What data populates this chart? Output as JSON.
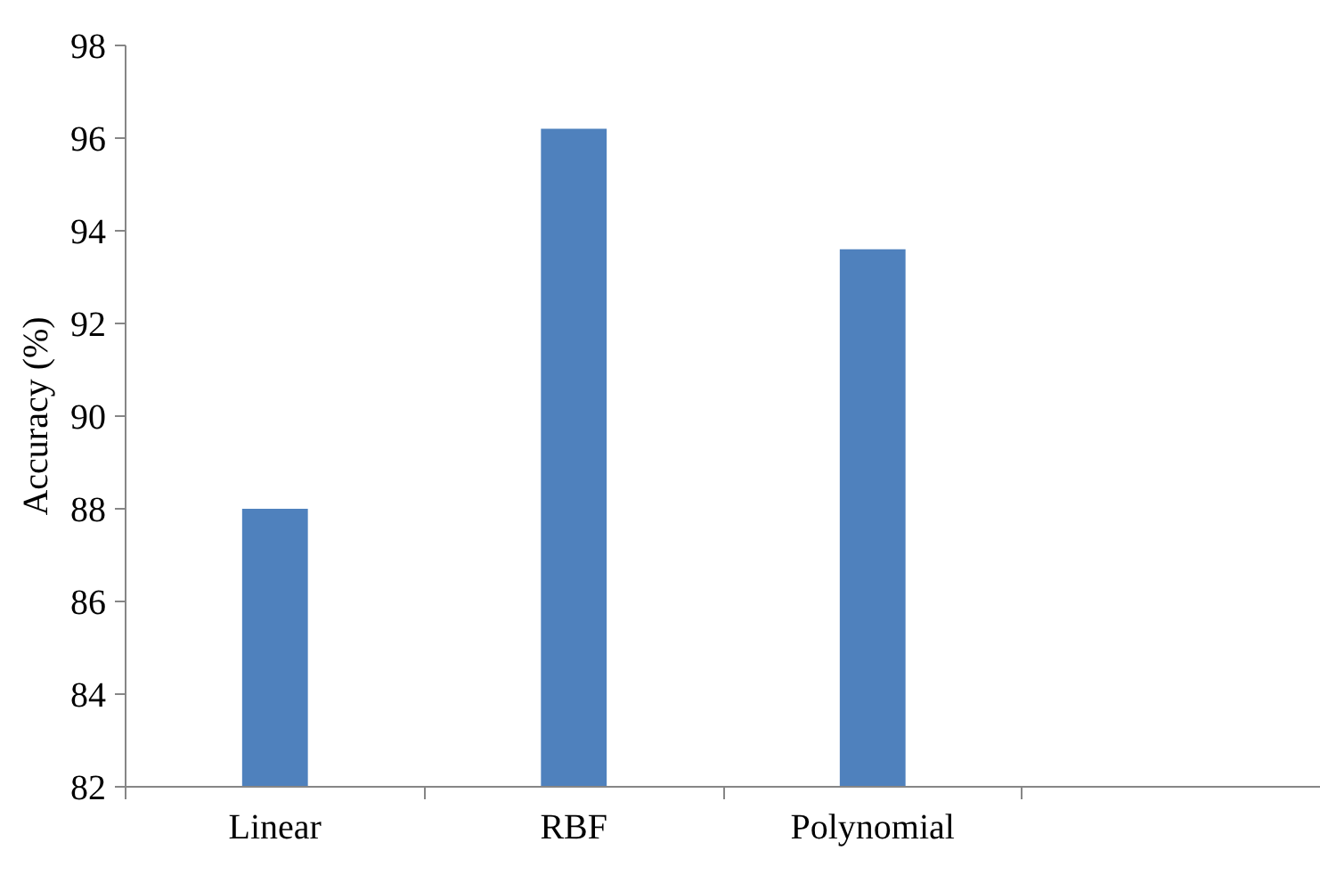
{
  "chart_data": {
    "type": "bar",
    "ylabel": "Accuracy (%)",
    "categories": [
      "Linear",
      "RBF",
      "Polynomial",
      null
    ],
    "values": [
      88.0,
      96.2,
      93.6,
      null
    ],
    "color": "#4f81bd",
    "ylim": [
      82,
      98
    ],
    "yticks": [
      82,
      84,
      86,
      88,
      90,
      92,
      94,
      96,
      98
    ],
    "grid": false
  }
}
